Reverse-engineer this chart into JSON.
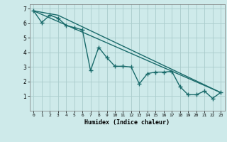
{
  "title": "",
  "xlabel": "Humidex (Indice chaleur)",
  "ylabel": "",
  "bg_color": "#ceeaea",
  "grid_color": "#aacccc",
  "line_color": "#1a6b6b",
  "xlim": [
    -0.5,
    23.5
  ],
  "ylim": [
    0,
    7.3
  ],
  "xticks": [
    0,
    1,
    2,
    3,
    4,
    5,
    6,
    7,
    8,
    9,
    10,
    11,
    12,
    13,
    14,
    15,
    16,
    17,
    18,
    19,
    20,
    21,
    22,
    23
  ],
  "yticks": [
    1,
    2,
    3,
    4,
    5,
    6,
    7
  ],
  "line1_x": [
    0,
    1,
    2,
    3,
    4,
    5,
    6,
    7,
    8,
    9,
    10,
    11,
    12,
    13,
    14,
    15,
    16,
    17,
    18,
    19,
    20,
    21,
    22,
    23
  ],
  "line1_y": [
    6.85,
    6.05,
    6.55,
    6.35,
    5.85,
    5.7,
    5.55,
    2.75,
    4.35,
    3.65,
    3.05,
    3.05,
    3.0,
    1.85,
    2.55,
    2.65,
    2.65,
    2.7,
    1.65,
    1.1,
    1.1,
    1.35,
    0.85,
    1.25
  ],
  "line2_x": [
    0,
    23
  ],
  "line2_y": [
    6.85,
    1.25
  ],
  "line3_x": [
    0,
    3,
    23
  ],
  "line3_y": [
    6.85,
    6.55,
    1.25
  ],
  "marker": "+",
  "markersize": 4,
  "linewidth": 1.0
}
